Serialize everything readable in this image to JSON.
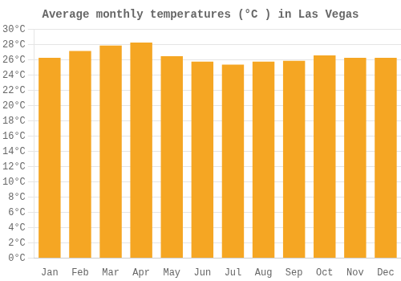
{
  "chart_data": {
    "type": "bar",
    "title": "Average monthly temperatures (°C ) in Las Vegas",
    "categories": [
      "Jan",
      "Feb",
      "Mar",
      "Apr",
      "May",
      "Jun",
      "Jul",
      "Aug",
      "Sep",
      "Oct",
      "Nov",
      "Dec"
    ],
    "values": [
      26.3,
      27.2,
      27.9,
      28.3,
      26.5,
      25.8,
      25.4,
      25.8,
      25.9,
      26.6,
      26.3,
      26.3
    ],
    "color": "#F5A623",
    "ylim": [
      0,
      30
    ],
    "yticks": [
      {
        "value": 0,
        "label": "0°C"
      },
      {
        "value": 2,
        "label": "2°C"
      },
      {
        "value": 4,
        "label": "4°C"
      },
      {
        "value": 6,
        "label": "6°C"
      },
      {
        "value": 8,
        "label": "8°C"
      },
      {
        "value": 10,
        "label": "10°C"
      },
      {
        "value": 12,
        "label": "12°C"
      },
      {
        "value": 14,
        "label": "14°C"
      },
      {
        "value": 16,
        "label": "16°C"
      },
      {
        "value": 18,
        "label": "18°C"
      },
      {
        "value": 20,
        "label": "20°C"
      },
      {
        "value": 22,
        "label": "22°C"
      },
      {
        "value": 24,
        "label": "24°C"
      },
      {
        "value": 26,
        "label": "26°C"
      },
      {
        "value": 28,
        "label": "28°C"
      },
      {
        "value": 30,
        "label": "30°C"
      }
    ],
    "grid": true
  }
}
